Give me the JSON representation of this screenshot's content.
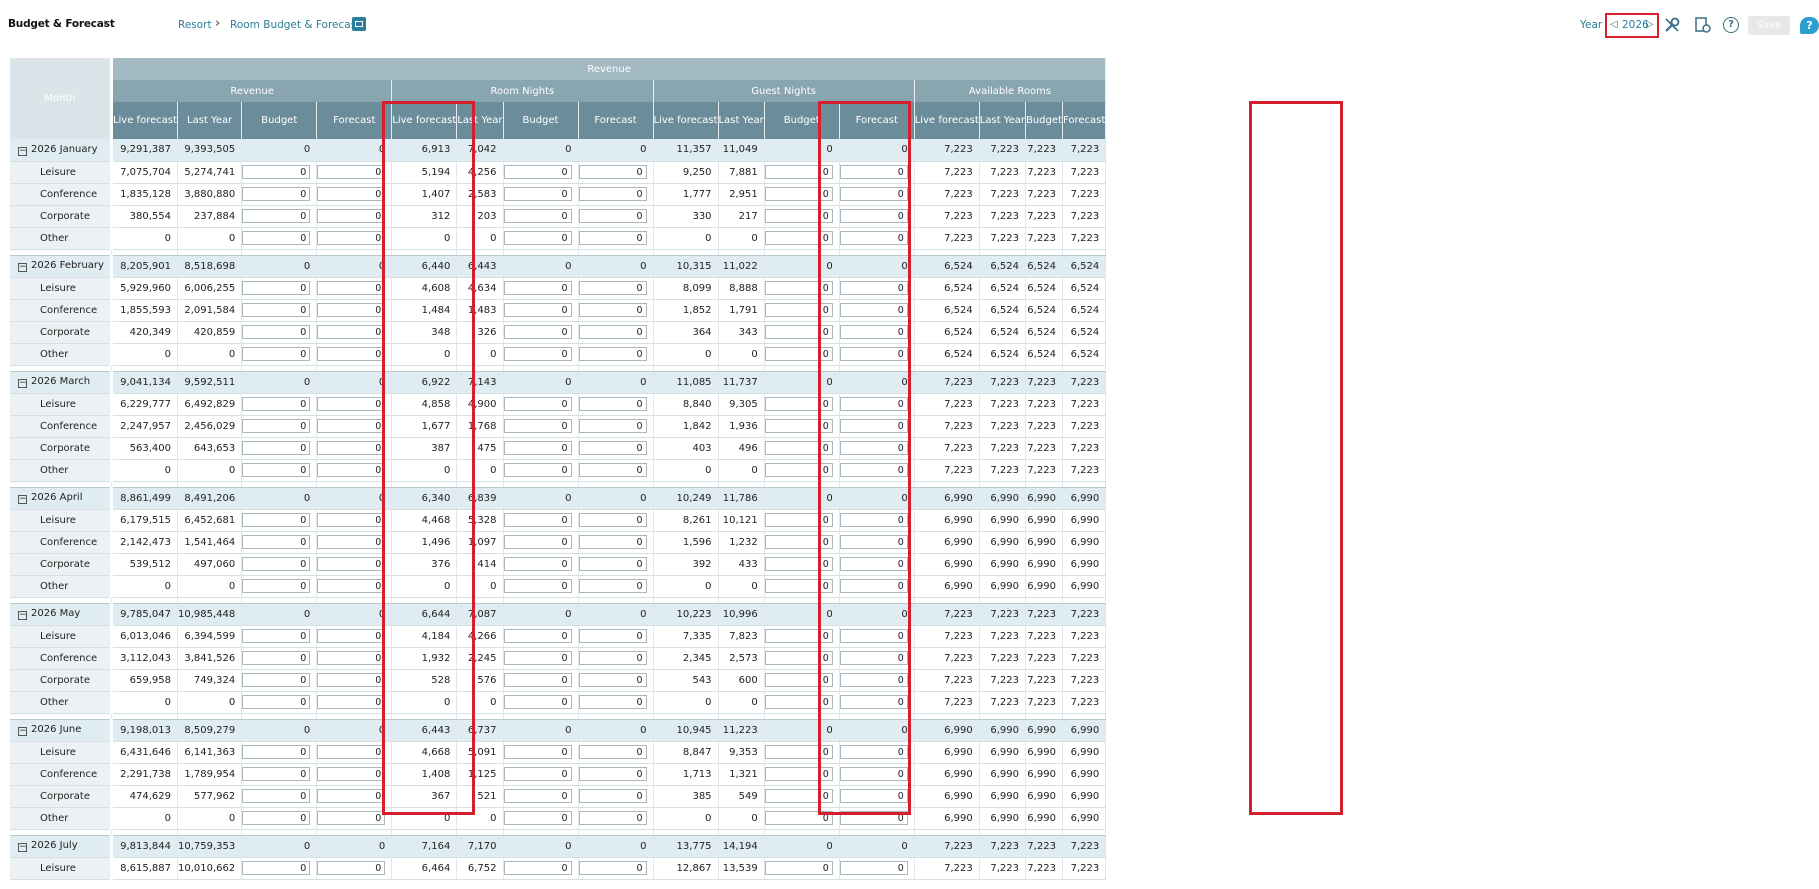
{
  "header": {
    "app_title": "Budget & Forecast",
    "breadcrumb": [
      "Resort",
      "Room Budget & Forecast"
    ],
    "year_label": "Year",
    "year_value": "2026",
    "save_label": "Save",
    "help_label": "?",
    "chat_label": "?"
  },
  "columns": {
    "month_header": "Month",
    "top_header": "Revenue",
    "groups": [
      "Revenue",
      "Room Nights",
      "Guest Nights",
      "Available Rooms"
    ],
    "subheaders": [
      "Live forecast",
      "Last Year",
      "Budget",
      "Forecast"
    ]
  },
  "months": [
    {
      "name": "2026 January",
      "totals": [
        "9,291,387",
        "9,393,505",
        "0",
        "0",
        "6,913",
        "7,042",
        "0",
        "0",
        "11,357",
        "11,049",
        "0",
        "0",
        "7,223",
        "7,223",
        "7,223",
        "7,223"
      ],
      "rows": [
        {
          "name": "Leisure",
          "vals": [
            "7,075,704",
            "5,274,741",
            "0",
            "0",
            "5,194",
            "4,256",
            "0",
            "0",
            "9,250",
            "7,881",
            "0",
            "0",
            "7,223",
            "7,223",
            "7,223",
            "7,223"
          ]
        },
        {
          "name": "Conference",
          "vals": [
            "1,835,128",
            "3,880,880",
            "0",
            "0",
            "1,407",
            "2,583",
            "0",
            "0",
            "1,777",
            "2,951",
            "0",
            "0",
            "7,223",
            "7,223",
            "7,223",
            "7,223"
          ]
        },
        {
          "name": "Corporate",
          "vals": [
            "380,554",
            "237,884",
            "0",
            "0",
            "312",
            "203",
            "0",
            "0",
            "330",
            "217",
            "0",
            "0",
            "7,223",
            "7,223",
            "7,223",
            "7,223"
          ]
        },
        {
          "name": "Other",
          "vals": [
            "0",
            "0",
            "0",
            "0",
            "0",
            "0",
            "0",
            "0",
            "0",
            "0",
            "0",
            "0",
            "7,223",
            "7,223",
            "7,223",
            "7,223"
          ]
        }
      ]
    },
    {
      "name": "2026 February",
      "totals": [
        "8,205,901",
        "8,518,698",
        "0",
        "0",
        "6,440",
        "6,443",
        "0",
        "0",
        "10,315",
        "11,022",
        "0",
        "0",
        "6,524",
        "6,524",
        "6,524",
        "6,524"
      ],
      "rows": [
        {
          "name": "Leisure",
          "vals": [
            "5,929,960",
            "6,006,255",
            "0",
            "0",
            "4,608",
            "4,634",
            "0",
            "0",
            "8,099",
            "8,888",
            "0",
            "0",
            "6,524",
            "6,524",
            "6,524",
            "6,524"
          ]
        },
        {
          "name": "Conference",
          "vals": [
            "1,855,593",
            "2,091,584",
            "0",
            "0",
            "1,484",
            "1,483",
            "0",
            "0",
            "1,852",
            "1,791",
            "0",
            "0",
            "6,524",
            "6,524",
            "6,524",
            "6,524"
          ]
        },
        {
          "name": "Corporate",
          "vals": [
            "420,349",
            "420,859",
            "0",
            "0",
            "348",
            "326",
            "0",
            "0",
            "364",
            "343",
            "0",
            "0",
            "6,524",
            "6,524",
            "6,524",
            "6,524"
          ]
        },
        {
          "name": "Other",
          "vals": [
            "0",
            "0",
            "0",
            "0",
            "0",
            "0",
            "0",
            "0",
            "0",
            "0",
            "0",
            "0",
            "6,524",
            "6,524",
            "6,524",
            "6,524"
          ]
        }
      ]
    },
    {
      "name": "2026 March",
      "totals": [
        "9,041,134",
        "9,592,511",
        "0",
        "0",
        "6,922",
        "7,143",
        "0",
        "0",
        "11,085",
        "11,737",
        "0",
        "0",
        "7,223",
        "7,223",
        "7,223",
        "7,223"
      ],
      "rows": [
        {
          "name": "Leisure",
          "vals": [
            "6,229,777",
            "6,492,829",
            "0",
            "0",
            "4,858",
            "4,900",
            "0",
            "0",
            "8,840",
            "9,305",
            "0",
            "0",
            "7,223",
            "7,223",
            "7,223",
            "7,223"
          ]
        },
        {
          "name": "Conference",
          "vals": [
            "2,247,957",
            "2,456,029",
            "0",
            "0",
            "1,677",
            "1,768",
            "0",
            "0",
            "1,842",
            "1,936",
            "0",
            "0",
            "7,223",
            "7,223",
            "7,223",
            "7,223"
          ]
        },
        {
          "name": "Corporate",
          "vals": [
            "563,400",
            "643,653",
            "0",
            "0",
            "387",
            "475",
            "0",
            "0",
            "403",
            "496",
            "0",
            "0",
            "7,223",
            "7,223",
            "7,223",
            "7,223"
          ]
        },
        {
          "name": "Other",
          "vals": [
            "0",
            "0",
            "0",
            "0",
            "0",
            "0",
            "0",
            "0",
            "0",
            "0",
            "0",
            "0",
            "7,223",
            "7,223",
            "7,223",
            "7,223"
          ]
        }
      ]
    },
    {
      "name": "2026 April",
      "totals": [
        "8,861,499",
        "8,491,206",
        "0",
        "0",
        "6,340",
        "6,839",
        "0",
        "0",
        "10,249",
        "11,786",
        "0",
        "0",
        "6,990",
        "6,990",
        "6,990",
        "6,990"
      ],
      "rows": [
        {
          "name": "Leisure",
          "vals": [
            "6,179,515",
            "6,452,681",
            "0",
            "0",
            "4,468",
            "5,328",
            "0",
            "0",
            "8,261",
            "10,121",
            "0",
            "0",
            "6,990",
            "6,990",
            "6,990",
            "6,990"
          ]
        },
        {
          "name": "Conference",
          "vals": [
            "2,142,473",
            "1,541,464",
            "0",
            "0",
            "1,496",
            "1,097",
            "0",
            "0",
            "1,596",
            "1,232",
            "0",
            "0",
            "6,990",
            "6,990",
            "6,990",
            "6,990"
          ]
        },
        {
          "name": "Corporate",
          "vals": [
            "539,512",
            "497,060",
            "0",
            "0",
            "376",
            "414",
            "0",
            "0",
            "392",
            "433",
            "0",
            "0",
            "6,990",
            "6,990",
            "6,990",
            "6,990"
          ]
        },
        {
          "name": "Other",
          "vals": [
            "0",
            "0",
            "0",
            "0",
            "0",
            "0",
            "0",
            "0",
            "0",
            "0",
            "0",
            "0",
            "6,990",
            "6,990",
            "6,990",
            "6,990"
          ]
        }
      ]
    },
    {
      "name": "2026 May",
      "totals": [
        "9,785,047",
        "10,985,448",
        "0",
        "0",
        "6,644",
        "7,087",
        "0",
        "0",
        "10,223",
        "10,996",
        "0",
        "0",
        "7,223",
        "7,223",
        "7,223",
        "7,223"
      ],
      "rows": [
        {
          "name": "Leisure",
          "vals": [
            "6,013,046",
            "6,394,599",
            "0",
            "0",
            "4,184",
            "4,266",
            "0",
            "0",
            "7,335",
            "7,823",
            "0",
            "0",
            "7,223",
            "7,223",
            "7,223",
            "7,223"
          ]
        },
        {
          "name": "Conference",
          "vals": [
            "3,112,043",
            "3,841,526",
            "0",
            "0",
            "1,932",
            "2,245",
            "0",
            "0",
            "2,345",
            "2,573",
            "0",
            "0",
            "7,223",
            "7,223",
            "7,223",
            "7,223"
          ]
        },
        {
          "name": "Corporate",
          "vals": [
            "659,958",
            "749,324",
            "0",
            "0",
            "528",
            "576",
            "0",
            "0",
            "543",
            "600",
            "0",
            "0",
            "7,223",
            "7,223",
            "7,223",
            "7,223"
          ]
        },
        {
          "name": "Other",
          "vals": [
            "0",
            "0",
            "0",
            "0",
            "0",
            "0",
            "0",
            "0",
            "0",
            "0",
            "0",
            "0",
            "7,223",
            "7,223",
            "7,223",
            "7,223"
          ]
        }
      ]
    },
    {
      "name": "2026 June",
      "totals": [
        "9,198,013",
        "8,509,279",
        "0",
        "0",
        "6,443",
        "6,737",
        "0",
        "0",
        "10,945",
        "11,223",
        "0",
        "0",
        "6,990",
        "6,990",
        "6,990",
        "6,990"
      ],
      "rows": [
        {
          "name": "Leisure",
          "vals": [
            "6,431,646",
            "6,141,363",
            "0",
            "0",
            "4,668",
            "5,091",
            "0",
            "0",
            "8,847",
            "9,353",
            "0",
            "0",
            "6,990",
            "6,990",
            "6,990",
            "6,990"
          ]
        },
        {
          "name": "Conference",
          "vals": [
            "2,291,738",
            "1,789,954",
            "0",
            "0",
            "1,408",
            "1,125",
            "0",
            "0",
            "1,713",
            "1,321",
            "0",
            "0",
            "6,990",
            "6,990",
            "6,990",
            "6,990"
          ]
        },
        {
          "name": "Corporate",
          "vals": [
            "474,629",
            "577,962",
            "0",
            "0",
            "367",
            "521",
            "0",
            "0",
            "385",
            "549",
            "0",
            "0",
            "6,990",
            "6,990",
            "6,990",
            "6,990"
          ]
        },
        {
          "name": "Other",
          "vals": [
            "0",
            "0",
            "0",
            "0",
            "0",
            "0",
            "0",
            "0",
            "0",
            "0",
            "0",
            "0",
            "6,990",
            "6,990",
            "6,990",
            "6,990"
          ]
        }
      ]
    },
    {
      "name": "2026 July",
      "totals": [
        "9,813,844",
        "10,759,353",
        "0",
        "0",
        "7,164",
        "7,170",
        "0",
        "0",
        "13,775",
        "14,194",
        "0",
        "0",
        "7,223",
        "7,223",
        "7,223",
        "7,223"
      ],
      "rows": [
        {
          "name": "Leisure",
          "vals": [
            "8,615,887",
            "10,010,662",
            "0",
            "0",
            "6,464",
            "6,752",
            "0",
            "0",
            "12,867",
            "13,539",
            "0",
            "0",
            "7,223",
            "7,223",
            "7,223",
            "7,223"
          ]
        }
      ]
    }
  ]
}
